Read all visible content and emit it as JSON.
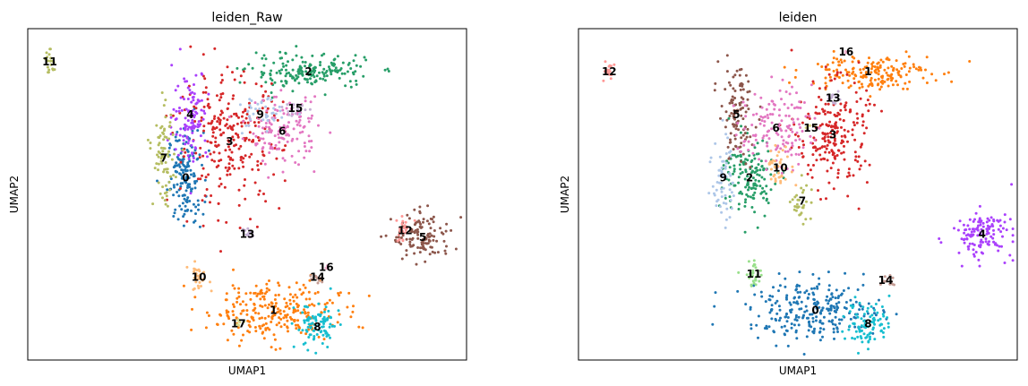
{
  "chart_data": [
    {
      "type": "scatter",
      "title": "leiden_Raw",
      "xlabel": "UMAP1",
      "ylabel": "UMAP2",
      "xticks": false,
      "yticks": false,
      "xlim": [
        0,
        100
      ],
      "ylim": [
        0,
        100
      ],
      "legend": "on data",
      "clusters": [
        {
          "name": "0",
          "color": "#1f77b4",
          "center": [
            36,
            55
          ],
          "spread": [
            2.0,
            7.0
          ],
          "n": 160
        },
        {
          "name": "1",
          "color": "#ff7f0e",
          "center": [
            56,
            15
          ],
          "spread": [
            7.5,
            4.5
          ],
          "n": 260
        },
        {
          "name": "2",
          "color": "#279e68",
          "center": [
            64,
            87
          ],
          "spread": [
            7.0,
            2.6
          ],
          "n": 180
        },
        {
          "name": "3",
          "color": "#d62728",
          "center": [
            46,
            66
          ],
          "spread": [
            6.0,
            10.0
          ],
          "n": 260
        },
        {
          "name": "4",
          "color": "#aa40fc",
          "center": [
            37,
            74
          ],
          "spread": [
            2.0,
            7.0
          ],
          "n": 110
        },
        {
          "name": "5",
          "color": "#8c564b",
          "center": [
            90,
            37
          ],
          "spread": [
            3.5,
            3.5
          ],
          "n": 120
        },
        {
          "name": "6",
          "color": "#e377c2",
          "center": [
            58,
            69
          ],
          "spread": [
            4.0,
            5.0
          ],
          "n": 140
        },
        {
          "name": "7",
          "color": "#b5bd61",
          "center": [
            31,
            61
          ],
          "spread": [
            1.2,
            7.0
          ],
          "n": 80
        },
        {
          "name": "8",
          "color": "#17becf",
          "center": [
            66,
            10
          ],
          "spread": [
            2.5,
            3.5
          ],
          "n": 90
        },
        {
          "name": "9",
          "color": "#aec7e8",
          "center": [
            53,
            74
          ],
          "spread": [
            2.5,
            3.0
          ],
          "n": 40
        },
        {
          "name": "10",
          "color": "#ffbb78",
          "center": [
            39,
            25
          ],
          "spread": [
            1.2,
            2.0
          ],
          "n": 30
        },
        {
          "name": "11",
          "color": "#b5bd61",
          "center": [
            5,
            90
          ],
          "spread": [
            0.6,
            1.6
          ],
          "n": 20
        },
        {
          "name": "12",
          "color": "#ff9896",
          "center": [
            86,
            39
          ],
          "spread": [
            1.5,
            2.0
          ],
          "n": 25
        },
        {
          "name": "13",
          "color": "#c5b0d5",
          "center": [
            50,
            38
          ],
          "spread": [
            0.6,
            1.0
          ],
          "n": 12
        },
        {
          "name": "14",
          "color": "#c49c94",
          "center": [
            66,
            25
          ],
          "spread": [
            0.8,
            0.8
          ],
          "n": 10
        },
        {
          "name": "15",
          "color": "#c5b0d5",
          "center": [
            61,
            76
          ],
          "spread": [
            1.5,
            1.2
          ],
          "n": 18
        },
        {
          "name": "16",
          "color": "#f7b6d2",
          "center": [
            68,
            28
          ],
          "spread": [
            0.4,
            0.4
          ],
          "n": 3
        },
        {
          "name": "17",
          "color": "#dbdb8d",
          "center": [
            48,
            11
          ],
          "spread": [
            0.8,
            0.8
          ],
          "n": 6
        }
      ]
    },
    {
      "type": "scatter",
      "title": "leiden",
      "xlabel": "UMAP1",
      "ylabel": "UMAP2",
      "xticks": false,
      "yticks": false,
      "xlim": [
        0,
        100
      ],
      "ylim": [
        0,
        100
      ],
      "legend": "on data",
      "clusters": [
        {
          "name": "0",
          "color": "#1f77b4",
          "center": [
            54,
            15
          ],
          "spread": [
            7.5,
            4.5
          ],
          "n": 260
        },
        {
          "name": "1",
          "color": "#ff7f0e",
          "center": [
            66,
            87
          ],
          "spread": [
            7.0,
            2.6
          ],
          "n": 180
        },
        {
          "name": "2",
          "color": "#279e68",
          "center": [
            39,
            55
          ],
          "spread": [
            3.0,
            6.0
          ],
          "n": 150
        },
        {
          "name": "3",
          "color": "#d62728",
          "center": [
            58,
            68
          ],
          "spread": [
            4.0,
            8.0
          ],
          "n": 220
        },
        {
          "name": "4",
          "color": "#aa40fc",
          "center": [
            92,
            38
          ],
          "spread": [
            3.5,
            3.5
          ],
          "n": 130
        },
        {
          "name": "5",
          "color": "#8c564b",
          "center": [
            36,
            74
          ],
          "spread": [
            2.0,
            7.0
          ],
          "n": 110
        },
        {
          "name": "6",
          "color": "#e377c2",
          "center": [
            45,
            70
          ],
          "spread": [
            4.0,
            6.0
          ],
          "n": 140
        },
        {
          "name": "7",
          "color": "#b5bd61",
          "center": [
            51,
            48
          ],
          "spread": [
            1.2,
            4.0
          ],
          "n": 30
        },
        {
          "name": "8",
          "color": "#17becf",
          "center": [
            66,
            11
          ],
          "spread": [
            2.5,
            3.5
          ],
          "n": 90
        },
        {
          "name": "9",
          "color": "#aec7e8",
          "center": [
            33,
            55
          ],
          "spread": [
            1.2,
            7.0
          ],
          "n": 60
        },
        {
          "name": "10",
          "color": "#ffbb78",
          "center": [
            46,
            58
          ],
          "spread": [
            1.5,
            3.0
          ],
          "n": 40
        },
        {
          "name": "11",
          "color": "#98df8a",
          "center": [
            40,
            26
          ],
          "spread": [
            1.2,
            2.0
          ],
          "n": 30
        },
        {
          "name": "12",
          "color": "#ff9896",
          "center": [
            7,
            87
          ],
          "spread": [
            0.6,
            1.6
          ],
          "n": 20
        },
        {
          "name": "13",
          "color": "#c5b0d5",
          "center": [
            58,
            79
          ],
          "spread": [
            1.0,
            1.0
          ],
          "n": 12
        },
        {
          "name": "14",
          "color": "#c49c94",
          "center": [
            70,
            24
          ],
          "spread": [
            1.0,
            1.0
          ],
          "n": 12
        },
        {
          "name": "15",
          "color": "#dbdb8d",
          "center": [
            53,
            70
          ],
          "spread": [
            0.6,
            0.6
          ],
          "n": 5
        },
        {
          "name": "16",
          "color": "#f7b6d2",
          "center": [
            61,
            93
          ],
          "spread": [
            0.4,
            0.4
          ],
          "n": 3
        }
      ]
    }
  ]
}
